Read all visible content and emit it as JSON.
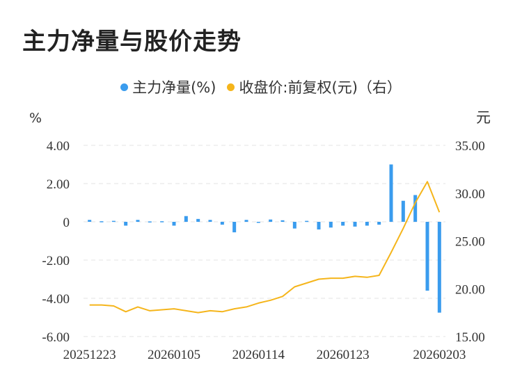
{
  "title": "主力净量与股价走势",
  "legend": {
    "bar_label": "主力净量(%)",
    "line_label": "收盘价:前复权(元)（右）"
  },
  "colors": {
    "bar": "#3a9cee",
    "line": "#f5b51b",
    "grid": "#e3e3e3"
  },
  "chart_data": {
    "type": "bar",
    "title": "主力净量与股价走势",
    "left_unit": "%",
    "right_unit": "元",
    "ylim": [
      -6,
      4
    ],
    "y2lim": [
      15,
      35
    ],
    "y_ticks": [
      "4.00",
      "2.00",
      "0",
      "-2.00",
      "-4.00",
      "-6.00"
    ],
    "y2_ticks": [
      "35.00",
      "30.00",
      "25.00",
      "20.00",
      "15.00"
    ],
    "x_tick_labels": [
      "20251223",
      "20260105",
      "20260114",
      "20260123",
      "20260203"
    ],
    "grid": true,
    "legend_position": "top",
    "series": [
      {
        "name": "主力净量(%)",
        "kind": "bar",
        "values": [
          0.1,
          0.03,
          0.05,
          -0.2,
          0.1,
          0.02,
          0.03,
          -0.2,
          0.3,
          0.15,
          0.1,
          -0.15,
          -0.55,
          0.1,
          -0.05,
          0.12,
          0.08,
          -0.35,
          0.05,
          -0.4,
          -0.3,
          -0.2,
          -0.25,
          -0.2,
          -0.15,
          3.0,
          1.1,
          1.4,
          -3.6,
          -4.75
        ]
      },
      {
        "name": "收盘价:前复权(元)（右）",
        "kind": "line",
        "axis": "right",
        "values": [
          18.3,
          18.3,
          18.2,
          17.6,
          18.1,
          17.7,
          17.8,
          17.9,
          17.7,
          17.5,
          17.7,
          17.6,
          17.9,
          18.1,
          18.5,
          18.8,
          19.2,
          20.2,
          20.6,
          21.0,
          21.1,
          21.1,
          21.3,
          21.2,
          21.4,
          23.8,
          26.3,
          29.0,
          31.2,
          28.0
        ]
      }
    ]
  }
}
